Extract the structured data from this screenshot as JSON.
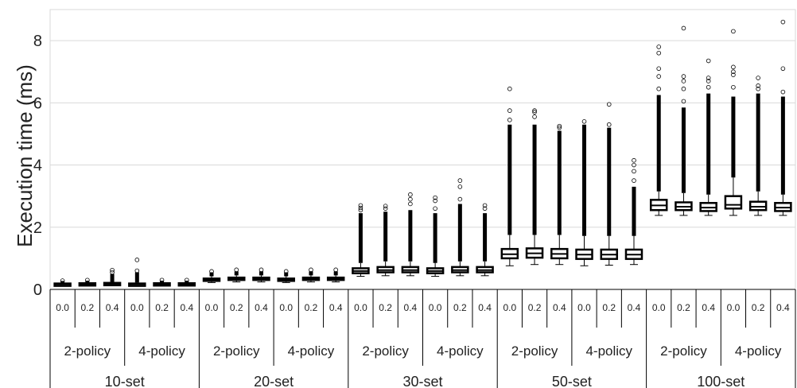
{
  "chart_data": {
    "type": "boxplot",
    "ylabel": "Execution time (ms)",
    "ylim": [
      0,
      9
    ],
    "yticks": [
      0,
      2,
      4,
      6,
      8
    ],
    "grid": true,
    "levels": {
      "outer": [
        "10-set",
        "20-set",
        "30-set",
        "50-set",
        "100-set"
      ],
      "middle": [
        "2-policy",
        "4-policy"
      ],
      "inner": [
        "0.0",
        "0.2",
        "0.4"
      ]
    },
    "boxes": [
      {
        "set": "10-set",
        "policy": "2-policy",
        "p": "0.0",
        "low": 0.12,
        "q1": 0.15,
        "median": 0.17,
        "q3": 0.19,
        "high": 0.22,
        "dense_top": 0.27,
        "outliers": [
          0.28
        ]
      },
      {
        "set": "10-set",
        "policy": "2-policy",
        "p": "0.2",
        "low": 0.13,
        "q1": 0.16,
        "median": 0.18,
        "q3": 0.2,
        "high": 0.23,
        "dense_top": 0.28,
        "outliers": [
          0.3
        ]
      },
      {
        "set": "10-set",
        "policy": "2-policy",
        "p": "0.4",
        "low": 0.13,
        "q1": 0.17,
        "median": 0.19,
        "q3": 0.21,
        "high": 0.24,
        "dense_top": 0.5,
        "outliers": [
          0.55,
          0.62
        ]
      },
      {
        "set": "10-set",
        "policy": "4-policy",
        "p": "0.0",
        "low": 0.12,
        "q1": 0.15,
        "median": 0.17,
        "q3": 0.19,
        "high": 0.22,
        "dense_top": 0.55,
        "outliers": [
          0.6,
          0.95
        ]
      },
      {
        "set": "10-set",
        "policy": "4-policy",
        "p": "0.2",
        "low": 0.13,
        "q1": 0.16,
        "median": 0.18,
        "q3": 0.2,
        "high": 0.23,
        "dense_top": 0.28,
        "outliers": [
          0.3
        ]
      },
      {
        "set": "10-set",
        "policy": "4-policy",
        "p": "0.4",
        "low": 0.13,
        "q1": 0.16,
        "median": 0.18,
        "q3": 0.2,
        "high": 0.23,
        "dense_top": 0.28,
        "outliers": [
          0.3
        ]
      },
      {
        "set": "20-set",
        "policy": "2-policy",
        "p": "0.0",
        "low": 0.22,
        "q1": 0.28,
        "median": 0.31,
        "q3": 0.35,
        "high": 0.42,
        "dense_top": 0.55,
        "outliers": [
          0.58
        ]
      },
      {
        "set": "20-set",
        "policy": "2-policy",
        "p": "0.2",
        "low": 0.24,
        "q1": 0.31,
        "median": 0.34,
        "q3": 0.38,
        "high": 0.45,
        "dense_top": 0.58,
        "outliers": [
          0.63
        ]
      },
      {
        "set": "20-set",
        "policy": "2-policy",
        "p": "0.4",
        "low": 0.24,
        "q1": 0.31,
        "median": 0.34,
        "q3": 0.38,
        "high": 0.45,
        "dense_top": 0.58,
        "outliers": [
          0.63
        ]
      },
      {
        "set": "20-set",
        "policy": "4-policy",
        "p": "0.0",
        "low": 0.22,
        "q1": 0.28,
        "median": 0.31,
        "q3": 0.35,
        "high": 0.42,
        "dense_top": 0.55,
        "outliers": [
          0.58
        ]
      },
      {
        "set": "20-set",
        "policy": "4-policy",
        "p": "0.2",
        "low": 0.24,
        "q1": 0.31,
        "median": 0.34,
        "q3": 0.38,
        "high": 0.45,
        "dense_top": 0.58,
        "outliers": [
          0.63
        ]
      },
      {
        "set": "20-set",
        "policy": "4-policy",
        "p": "0.4",
        "low": 0.24,
        "q1": 0.31,
        "median": 0.34,
        "q3": 0.38,
        "high": 0.45,
        "dense_top": 0.58,
        "outliers": [
          0.63
        ]
      },
      {
        "set": "30-set",
        "policy": "2-policy",
        "p": "0.0",
        "low": 0.42,
        "q1": 0.52,
        "median": 0.59,
        "q3": 0.68,
        "high": 0.85,
        "dense_top": 2.45,
        "outliers": [
          2.55,
          2.62,
          2.7
        ]
      },
      {
        "set": "30-set",
        "policy": "2-policy",
        "p": "0.2",
        "low": 0.44,
        "q1": 0.55,
        "median": 0.62,
        "q3": 0.72,
        "high": 0.9,
        "dense_top": 2.5,
        "outliers": [
          2.6,
          2.68
        ]
      },
      {
        "set": "30-set",
        "policy": "2-policy",
        "p": "0.4",
        "low": 0.44,
        "q1": 0.55,
        "median": 0.62,
        "q3": 0.72,
        "high": 0.9,
        "dense_top": 2.55,
        "outliers": [
          2.75,
          2.9,
          3.05
        ]
      },
      {
        "set": "30-set",
        "policy": "4-policy",
        "p": "0.0",
        "low": 0.42,
        "q1": 0.52,
        "median": 0.59,
        "q3": 0.68,
        "high": 0.85,
        "dense_top": 2.45,
        "outliers": [
          2.6,
          2.85,
          2.95
        ]
      },
      {
        "set": "30-set",
        "policy": "4-policy",
        "p": "0.2",
        "low": 0.44,
        "q1": 0.55,
        "median": 0.62,
        "q3": 0.72,
        "high": 0.9,
        "dense_top": 2.75,
        "outliers": [
          2.9,
          3.3,
          3.5
        ]
      },
      {
        "set": "30-set",
        "policy": "4-policy",
        "p": "0.4",
        "low": 0.44,
        "q1": 0.55,
        "median": 0.62,
        "q3": 0.72,
        "high": 0.9,
        "dense_top": 2.45,
        "outliers": [
          2.6,
          2.7
        ]
      },
      {
        "set": "50-set",
        "policy": "2-policy",
        "p": "0.0",
        "low": 0.76,
        "q1": 1.0,
        "median": 1.13,
        "q3": 1.3,
        "high": 1.75,
        "dense_top": 5.3,
        "outliers": [
          5.45,
          5.75,
          6.45
        ]
      },
      {
        "set": "50-set",
        "policy": "2-policy",
        "p": "0.2",
        "low": 0.8,
        "q1": 1.02,
        "median": 1.16,
        "q3": 1.32,
        "high": 1.75,
        "dense_top": 5.3,
        "outliers": [
          5.55,
          5.7,
          5.75
        ]
      },
      {
        "set": "50-set",
        "policy": "2-policy",
        "p": "0.4",
        "low": 0.8,
        "q1": 1.0,
        "median": 1.14,
        "q3": 1.3,
        "high": 1.75,
        "dense_top": 5.1,
        "outliers": [
          5.2,
          5.25
        ]
      },
      {
        "set": "50-set",
        "policy": "4-policy",
        "p": "0.0",
        "low": 0.76,
        "q1": 0.98,
        "median": 1.12,
        "q3": 1.28,
        "high": 1.72,
        "dense_top": 5.3,
        "outliers": [
          5.4
        ]
      },
      {
        "set": "50-set",
        "policy": "4-policy",
        "p": "0.2",
        "low": 0.78,
        "q1": 0.98,
        "median": 1.12,
        "q3": 1.28,
        "high": 1.72,
        "dense_top": 5.2,
        "outliers": [
          5.3,
          5.95
        ]
      },
      {
        "set": "50-set",
        "policy": "4-policy",
        "p": "0.4",
        "low": 0.8,
        "q1": 0.98,
        "median": 1.12,
        "q3": 1.28,
        "high": 1.72,
        "dense_top": 3.3,
        "outliers": [
          3.5,
          3.8,
          4.0,
          4.15
        ]
      },
      {
        "set": "100-set",
        "policy": "2-policy",
        "p": "0.0",
        "low": 2.38,
        "q1": 2.55,
        "median": 2.7,
        "q3": 2.88,
        "high": 3.15,
        "dense_top": 6.25,
        "outliers": [
          6.45,
          6.85,
          7.1,
          7.6,
          7.8
        ]
      },
      {
        "set": "100-set",
        "policy": "2-policy",
        "p": "0.2",
        "low": 2.38,
        "q1": 2.55,
        "median": 2.66,
        "q3": 2.8,
        "high": 3.1,
        "dense_top": 5.85,
        "outliers": [
          6.05,
          6.45,
          6.7,
          6.85,
          8.4
        ]
      },
      {
        "set": "100-set",
        "policy": "2-policy",
        "p": "0.4",
        "low": 2.38,
        "q1": 2.52,
        "median": 2.63,
        "q3": 2.78,
        "high": 3.05,
        "dense_top": 6.3,
        "outliers": [
          6.5,
          6.7,
          6.8,
          7.35
        ]
      },
      {
        "set": "100-set",
        "policy": "4-policy",
        "p": "0.0",
        "low": 2.38,
        "q1": 2.6,
        "median": 2.72,
        "q3": 3.0,
        "high": 3.6,
        "dense_top": 6.2,
        "outliers": [
          6.5,
          6.9,
          7.0,
          7.15,
          8.3
        ]
      },
      {
        "set": "100-set",
        "policy": "4-policy",
        "p": "0.2",
        "low": 2.38,
        "q1": 2.55,
        "median": 2.66,
        "q3": 2.82,
        "high": 3.15,
        "dense_top": 6.3,
        "outliers": [
          6.45,
          6.55,
          6.8
        ]
      },
      {
        "set": "100-set",
        "policy": "4-policy",
        "p": "0.4",
        "low": 2.38,
        "q1": 2.52,
        "median": 2.63,
        "q3": 2.78,
        "high": 3.05,
        "dense_top": 6.2,
        "outliers": [
          6.35,
          7.1,
          8.6
        ]
      }
    ]
  }
}
